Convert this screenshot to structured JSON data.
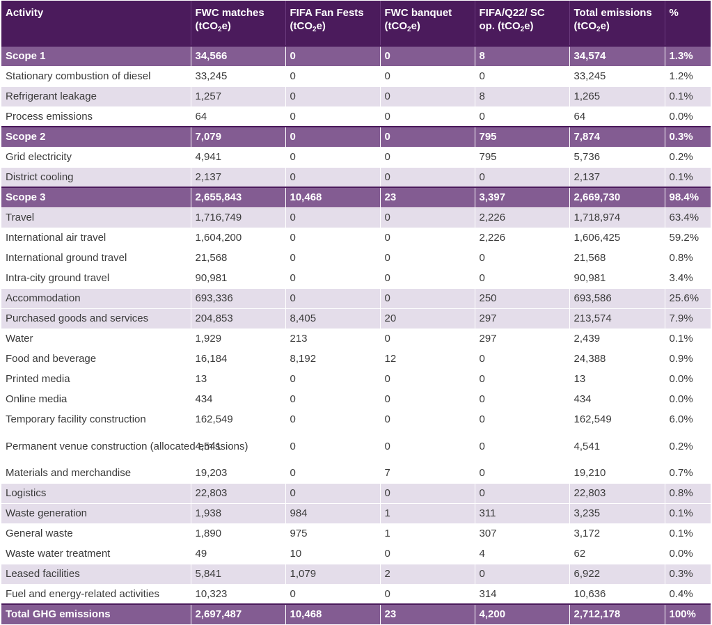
{
  "table": {
    "headers": [
      {
        "line1": "Activity",
        "line2_pre": "",
        "line2_sub": "",
        "line2_post": ""
      },
      {
        "line1": "FWC matches",
        "line2_pre": "(tCO",
        "line2_sub": "2",
        "line2_post": "e)"
      },
      {
        "line1": "FIFA Fan Fests",
        "line2_pre": "(tCO",
        "line2_sub": "2",
        "line2_post": "e)"
      },
      {
        "line1": "FWC banquet",
        "line2_pre": "(tCO",
        "line2_sub": "2",
        "line2_post": "e)"
      },
      {
        "line1": "FIFA/Q22/ SC",
        "line2_pre": "op. (tCO",
        "line2_sub": "2",
        "line2_post": "e)"
      },
      {
        "line1": "Total emissions",
        "line2_pre": "(tCO",
        "line2_sub": "2",
        "line2_post": "e)"
      },
      {
        "line1": "%",
        "line2_pre": "",
        "line2_sub": "",
        "line2_post": ""
      }
    ],
    "rows": [
      {
        "type": "scope",
        "indent": false,
        "cells": [
          "Scope 1",
          "34,566",
          "0",
          "0",
          "8",
          "34,574",
          "1.3%"
        ]
      },
      {
        "type": "light",
        "indent": false,
        "cells": [
          "Stationary combustion of diesel",
          "33,245",
          "0",
          "0",
          "0",
          "33,245",
          "1.2%"
        ]
      },
      {
        "type": "lavender",
        "indent": false,
        "cells": [
          "Refrigerant leakage",
          "1,257",
          "0",
          "0",
          "8",
          "1,265",
          "0.1%"
        ]
      },
      {
        "type": "light",
        "indent": false,
        "cells": [
          "Process emissions",
          "64",
          "0",
          "0",
          "0",
          "64",
          "0.0%"
        ]
      },
      {
        "type": "scope",
        "indent": false,
        "cells": [
          "Scope 2",
          "7,079",
          "0",
          "0",
          "795",
          "7,874",
          "0.3%"
        ]
      },
      {
        "type": "light",
        "indent": false,
        "cells": [
          "Grid electricity",
          "4,941",
          "0",
          "0",
          "795",
          "5,736",
          "0.2%"
        ]
      },
      {
        "type": "lavender",
        "indent": false,
        "cells": [
          "District cooling",
          "2,137",
          "0",
          "0",
          "0",
          "2,137",
          "0.1%"
        ]
      },
      {
        "type": "scope",
        "indent": false,
        "cells": [
          "Scope 3",
          "2,655,843",
          "10,468",
          "23",
          "3,397",
          "2,669,730",
          "98.4%"
        ]
      },
      {
        "type": "lavender",
        "indent": false,
        "cells": [
          "Travel",
          "1,716,749",
          "0",
          "0",
          "2,226",
          "1,718,974",
          "63.4%"
        ]
      },
      {
        "type": "light",
        "indent": true,
        "cells": [
          "International air travel",
          "1,604,200",
          "0",
          "0",
          "2,226",
          "1,606,425",
          "59.2%"
        ]
      },
      {
        "type": "light",
        "indent": true,
        "cells": [
          "International ground travel",
          "21,568",
          "0",
          "0",
          "0",
          "21,568",
          "0.8%"
        ]
      },
      {
        "type": "light",
        "indent": true,
        "cells": [
          "Intra-city ground travel",
          "90,981",
          "0",
          "0",
          "0",
          "90,981",
          "3.4%"
        ]
      },
      {
        "type": "lavender",
        "indent": false,
        "cells": [
          "Accommodation",
          "693,336",
          "0",
          "0",
          "250",
          "693,586",
          "25.6%"
        ]
      },
      {
        "type": "lavender",
        "indent": false,
        "cells": [
          "Purchased goods and services",
          "204,853",
          "8,405",
          "20",
          "297",
          "213,574",
          "7.9%"
        ]
      },
      {
        "type": "light",
        "indent": true,
        "cells": [
          "Water",
          "1,929",
          "213",
          "0",
          "297",
          "2,439",
          "0.1%"
        ]
      },
      {
        "type": "light",
        "indent": true,
        "cells": [
          "Food and beverage",
          "16,184",
          "8,192",
          "12",
          "0",
          "24,388",
          "0.9%"
        ]
      },
      {
        "type": "light",
        "indent": true,
        "cells": [
          "Printed media",
          "13",
          "0",
          "0",
          "0",
          "13",
          "0.0%"
        ]
      },
      {
        "type": "light",
        "indent": true,
        "cells": [
          "Online media",
          "434",
          "0",
          "0",
          "0",
          "434",
          "0.0%"
        ]
      },
      {
        "type": "light",
        "indent": true,
        "cells": [
          "Temporary facility construction",
          "162,549",
          "0",
          "0",
          "0",
          "162,549",
          "6.0%"
        ]
      },
      {
        "type": "light",
        "indent": true,
        "tall": true,
        "cells": [
          "Permanent venue construction (allocated emissions)",
          "4,541",
          "0",
          "0",
          "0",
          "4,541",
          "0.2%"
        ]
      },
      {
        "type": "light",
        "indent": true,
        "cells": [
          "Materials and merchandise",
          "19,203",
          "0",
          "7",
          "0",
          "19,210",
          "0.7%"
        ]
      },
      {
        "type": "lavender",
        "indent": false,
        "cells": [
          "Logistics",
          "22,803",
          "0",
          "0",
          "0",
          "22,803",
          "0.8%"
        ]
      },
      {
        "type": "lavender",
        "indent": false,
        "cells": [
          "Waste generation",
          "1,938",
          "984",
          "1",
          "311",
          "3,235",
          "0.1%"
        ]
      },
      {
        "type": "light",
        "indent": true,
        "cells": [
          "General waste",
          "1,890",
          "975",
          "1",
          "307",
          "3,172",
          "0.1%"
        ]
      },
      {
        "type": "light",
        "indent": true,
        "cells": [
          "Waste water treatment",
          "49",
          "10",
          "0",
          "4",
          "62",
          "0.0%"
        ]
      },
      {
        "type": "lavender",
        "indent": false,
        "cells": [
          "Leased facilities",
          "5,841",
          "1,079",
          "2",
          "0",
          "6,922",
          "0.3%"
        ]
      },
      {
        "type": "light",
        "indent": false,
        "cells": [
          "Fuel and energy-related activities",
          "10,323",
          "0",
          "0",
          "314",
          "10,636",
          "0.4%"
        ]
      },
      {
        "type": "total",
        "indent": false,
        "cells": [
          "Total GHG emissions",
          "2,697,487",
          "10,468",
          "23",
          "4,200",
          "2,712,178",
          "100%"
        ]
      }
    ]
  },
  "colors": {
    "header_bg": "#4b1b5c",
    "scope_bg": "#835c92",
    "lavender_bg": "#e4ddea",
    "text": "#3b3b3b"
  }
}
